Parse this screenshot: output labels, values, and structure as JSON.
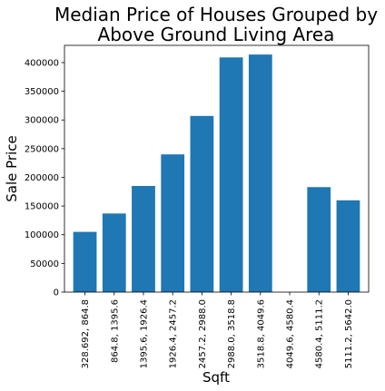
{
  "chart_data": {
    "type": "bar",
    "title_lines": [
      "Median Price of Houses Grouped by",
      "Above Ground Living Area"
    ],
    "xlabel": "Sqft",
    "ylabel": "Sale Price",
    "ylim": [
      0,
      430000
    ],
    "yticks": [
      0,
      50000,
      100000,
      150000,
      200000,
      250000,
      300000,
      350000,
      400000
    ],
    "categories": [
      "328.692, 864.8",
      "864.8, 1395.6",
      "1395.6, 1926.4",
      "1926.4, 2457.2",
      "2457.2, 2988.0",
      "2988.0, 3518.8",
      "3518.8, 4049.6",
      "4049.6, 4580.4",
      "4580.4, 5111.2",
      "5111.2, 5642.0"
    ],
    "values": [
      105000,
      137000,
      185000,
      240000,
      307000,
      409000,
      414000,
      0,
      183000,
      160000
    ],
    "bar_color": "#1f77b4",
    "grid": false
  }
}
